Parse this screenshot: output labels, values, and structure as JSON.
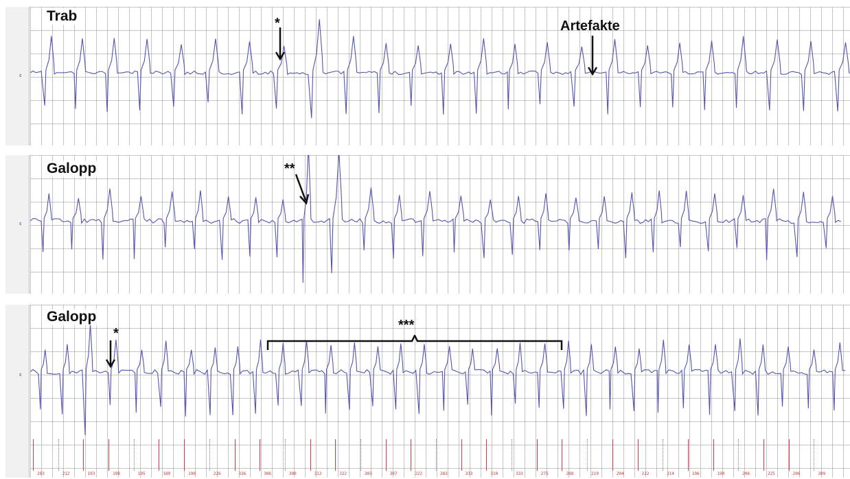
{
  "panels": [
    {
      "label": "Trab"
    },
    {
      "label": "Galopp"
    },
    {
      "label": "Galopp"
    }
  ],
  "annotations": {
    "trab_marker": "*",
    "trab_artefacts": "Artefakte",
    "galopp1_marker": "**",
    "galopp2_marker": "*",
    "galopp2_bracket": "***"
  },
  "axis_tick_label": "ε",
  "beat_numbers": [
    "203",
    "212",
    "193",
    "198",
    "195",
    "189",
    "190",
    "226",
    "326",
    "306",
    "300",
    "312",
    "322",
    "303",
    "307",
    "222",
    "283",
    "333",
    "310",
    "333",
    "275",
    "288",
    "219",
    "204",
    "222",
    "214",
    "196",
    "190",
    "206",
    "225",
    "206",
    "209"
  ],
  "colors": {
    "trace": "#5552b0",
    "grid": "#9a9a9a",
    "beat_marker": "#d23c3c"
  }
}
